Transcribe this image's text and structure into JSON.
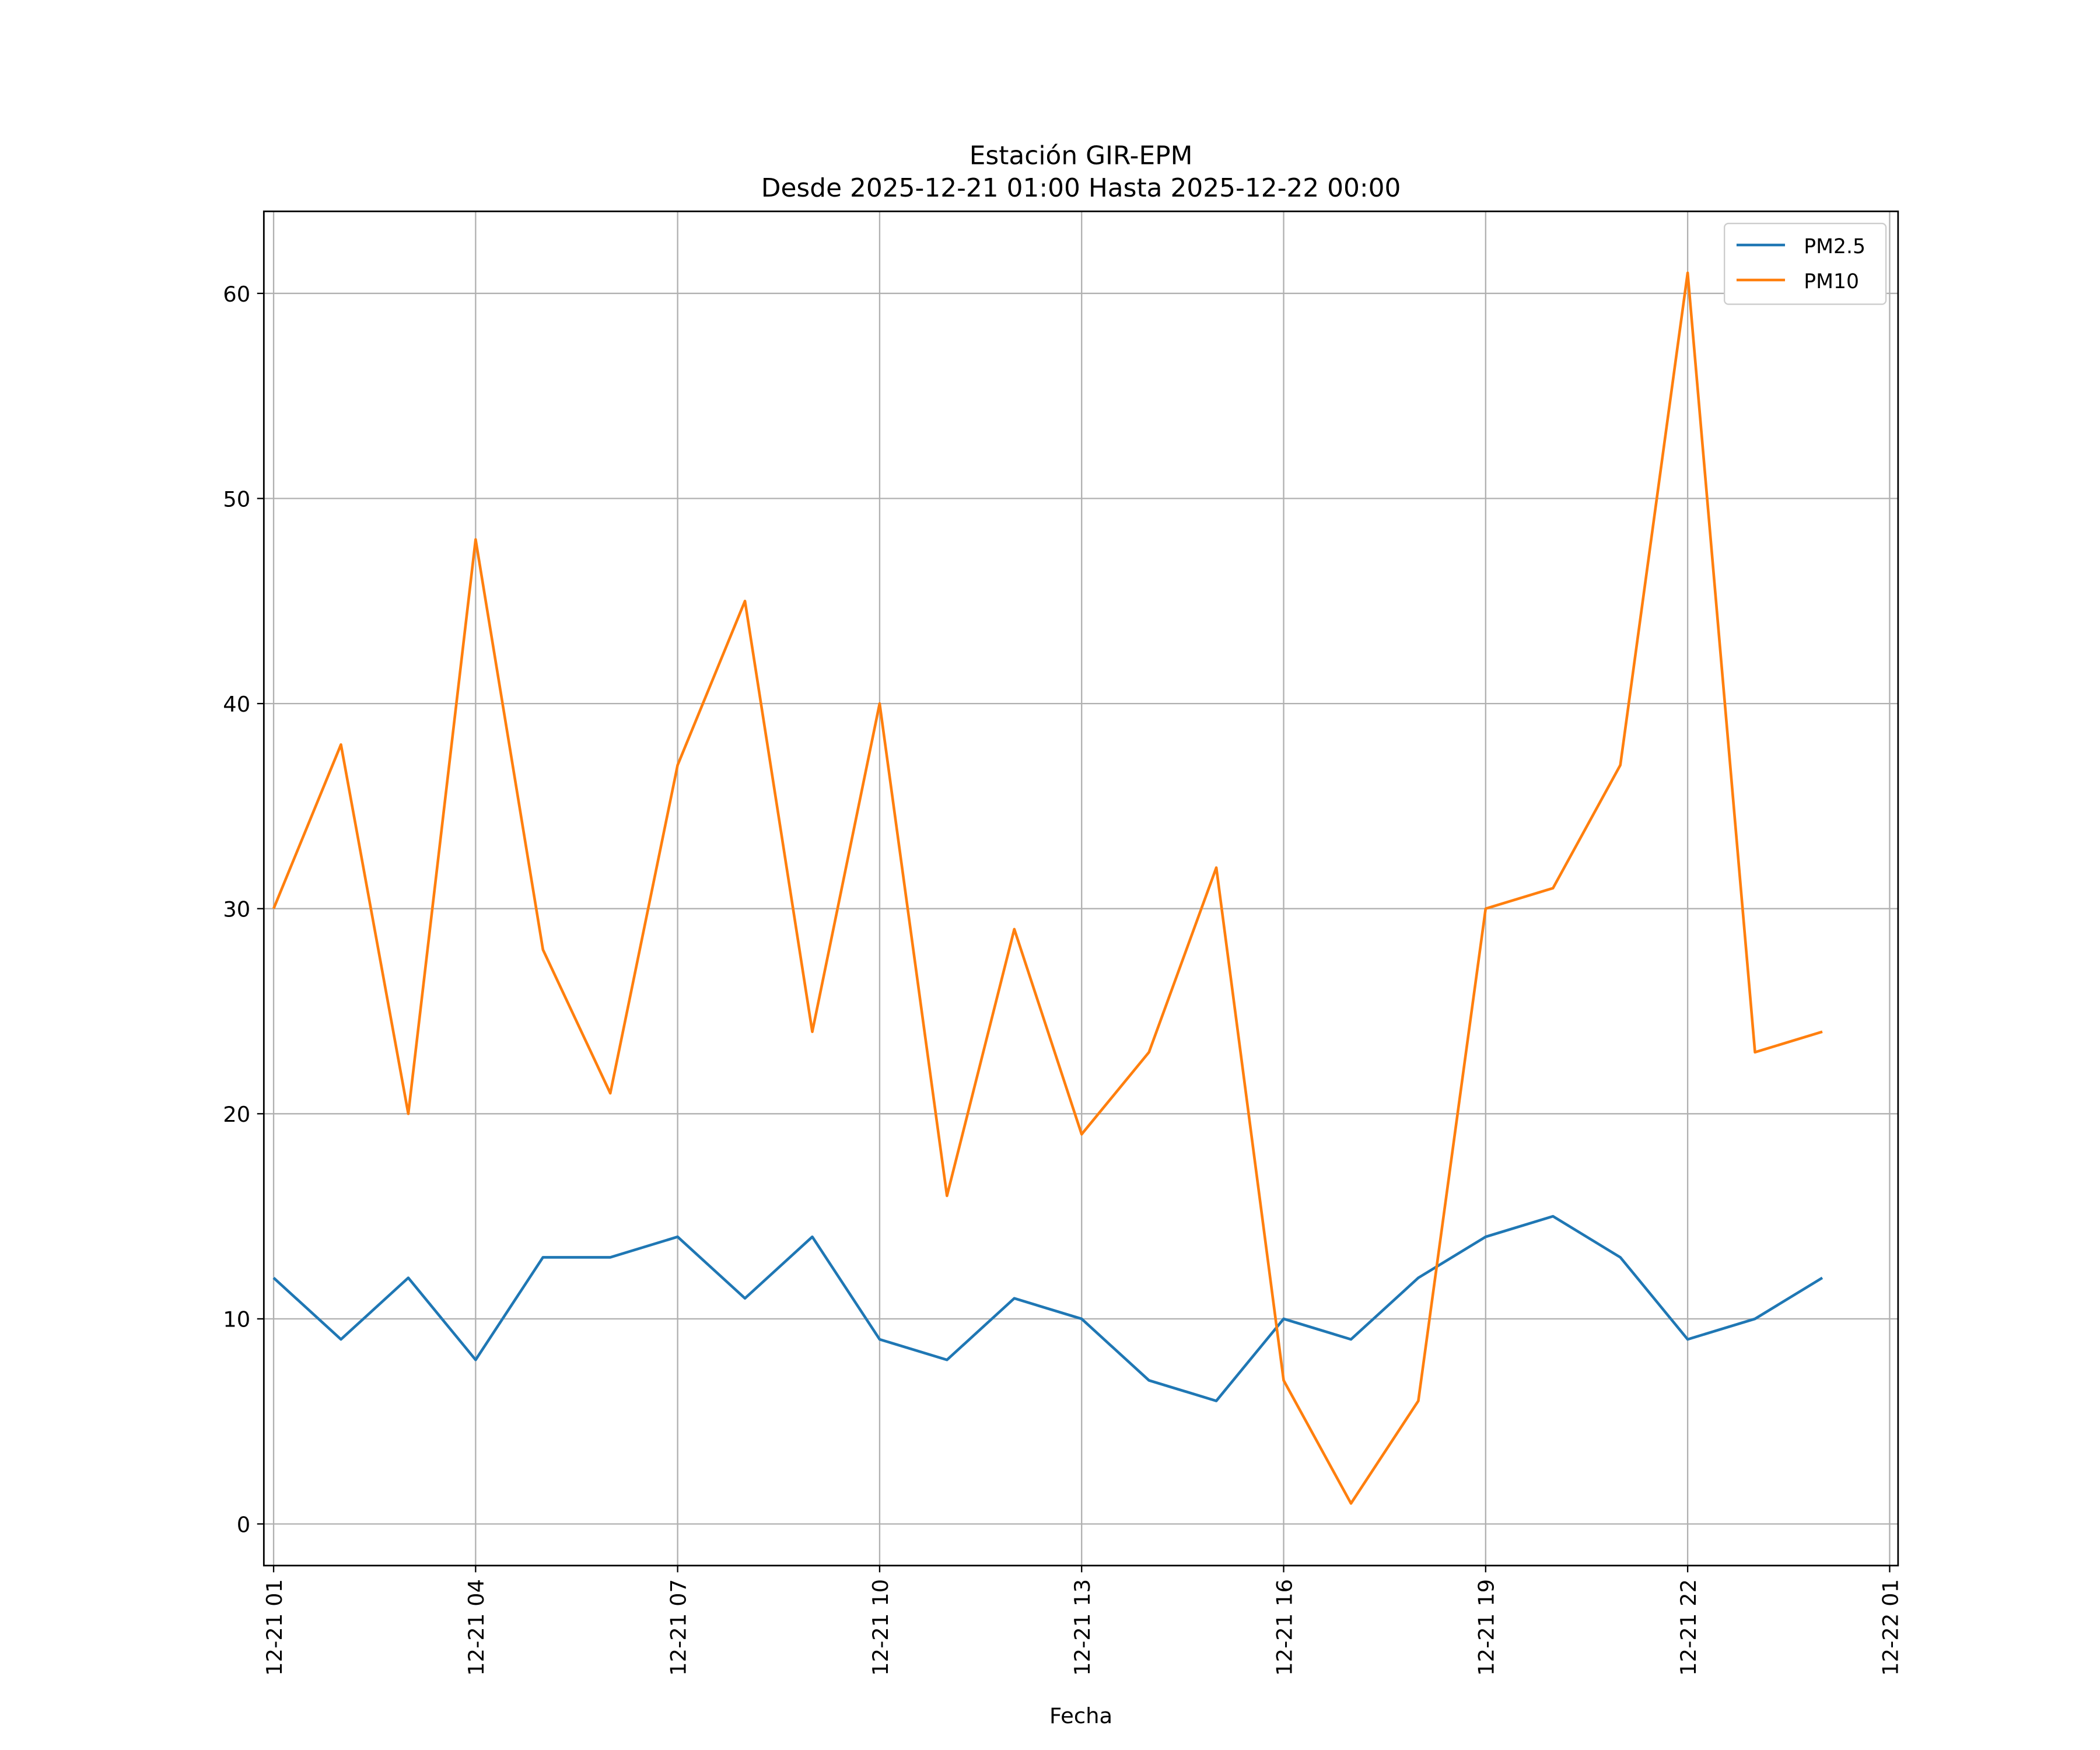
{
  "chart_data": {
    "type": "line",
    "title": "Estación GIR-EPM",
    "subtitle": "Desde 2025-12-21 01:00 Hasta 2025-12-22 00:00",
    "xlabel": "Fecha",
    "ylabel": "",
    "x_hours": [
      1,
      2,
      3,
      4,
      5,
      6,
      7,
      8,
      9,
      10,
      11,
      12,
      13,
      14,
      15,
      16,
      17,
      18,
      19,
      20,
      21,
      22,
      23,
      24
    ],
    "x_labels_full": [
      "2025-12-21 01:00",
      "2025-12-21 02:00",
      "2025-12-21 03:00",
      "2025-12-21 04:00",
      "2025-12-21 05:00",
      "2025-12-21 06:00",
      "2025-12-21 07:00",
      "2025-12-21 08:00",
      "2025-12-21 09:00",
      "2025-12-21 10:00",
      "2025-12-21 11:00",
      "2025-12-21 12:00",
      "2025-12-21 13:00",
      "2025-12-21 14:00",
      "2025-12-21 15:00",
      "2025-12-21 16:00",
      "2025-12-21 17:00",
      "2025-12-21 18:00",
      "2025-12-21 19:00",
      "2025-12-21 20:00",
      "2025-12-21 21:00",
      "2025-12-21 22:00",
      "2025-12-21 23:00",
      "2025-12-22 00:00"
    ],
    "series": [
      {
        "name": "PM2.5",
        "color": "#1f77b4",
        "values": [
          12,
          9,
          12,
          8,
          13,
          13,
          14,
          11,
          14,
          9,
          8,
          11,
          10,
          7,
          6,
          10,
          9,
          12,
          14,
          15,
          13,
          9,
          10,
          12
        ]
      },
      {
        "name": "PM10",
        "color": "#ff7f0e",
        "values": [
          30,
          38,
          20,
          48,
          28,
          21,
          37,
          45,
          24,
          40,
          16,
          29,
          19,
          23,
          32,
          7,
          1,
          6,
          30,
          31,
          37,
          61,
          23,
          24
        ]
      }
    ],
    "xticks": [
      {
        "hour": 1,
        "label": "12-21 01"
      },
      {
        "hour": 4,
        "label": "12-21 04"
      },
      {
        "hour": 7,
        "label": "12-21 07"
      },
      {
        "hour": 10,
        "label": "12-21 10"
      },
      {
        "hour": 13,
        "label": "12-21 13"
      },
      {
        "hour": 16,
        "label": "12-21 16"
      },
      {
        "hour": 19,
        "label": "12-21 19"
      },
      {
        "hour": 22,
        "label": "12-21 22"
      },
      {
        "hour": 25,
        "label": "12-22 01"
      }
    ],
    "yticks": [
      0,
      10,
      20,
      30,
      40,
      50,
      60
    ],
    "xlim_hours": [
      0.855,
      25.125
    ],
    "ylim": [
      -2.03,
      64.0
    ],
    "grid": true,
    "legend_position": "top-right"
  }
}
